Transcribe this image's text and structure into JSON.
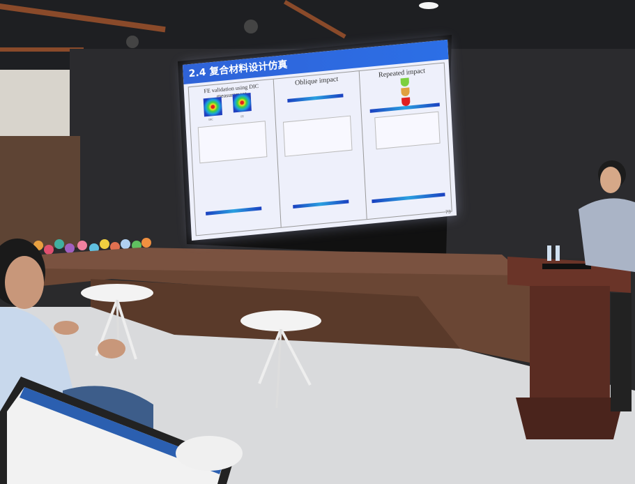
{
  "slide": {
    "title": "2.4 复合材料设计仿真",
    "panels": [
      {
        "title": "FE validation using DIC measurement",
        "labels": [
          "DIC",
          "FE"
        ]
      },
      {
        "title": "Oblique impact"
      },
      {
        "title": "Repeated impact"
      }
    ],
    "page_number": "73"
  },
  "colors": {
    "slide_header": "#2f63d8",
    "stage_wood": "#6a4634",
    "floor": "#d9dadc",
    "podium": "#5a2c22"
  }
}
